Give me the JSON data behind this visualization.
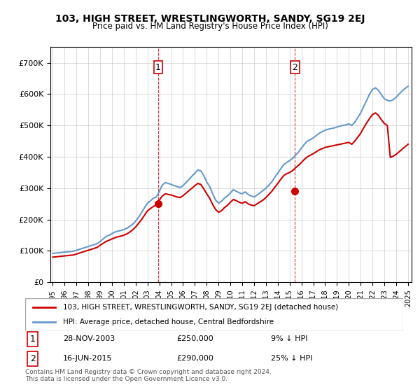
{
  "title": "103, HIGH STREET, WRESTLINGWORTH, SANDY, SG19 2EJ",
  "subtitle": "Price paid vs. HM Land Registry's House Price Index (HPI)",
  "legend_line1": "103, HIGH STREET, WRESTLINGWORTH, SANDY, SG19 2EJ (detached house)",
  "legend_line2": "HPI: Average price, detached house, Central Bedfordshire",
  "footnote": "Contains HM Land Registry data © Crown copyright and database right 2024.\nThis data is licensed under the Open Government Licence v3.0.",
  "sale1_label": "1",
  "sale1_date": "28-NOV-2003",
  "sale1_price": "£250,000",
  "sale1_hpi": "9% ↓ HPI",
  "sale1_year": 2003.9,
  "sale1_value": 250000,
  "sale2_label": "2",
  "sale2_date": "16-JUN-2015",
  "sale2_price": "£290,000",
  "sale2_hpi": "25% ↓ HPI",
  "sale2_year": 2015.45,
  "sale2_value": 290000,
  "red_color": "#cc0000",
  "blue_color": "#6699cc",
  "marker_color": "#cc0000",
  "dashed_color": "#cc3333",
  "ylim": [
    0,
    750000
  ],
  "yticks": [
    0,
    100000,
    200000,
    300000,
    400000,
    500000,
    600000,
    700000
  ],
  "hpi_data": {
    "years": [
      1995.0,
      1995.25,
      1995.5,
      1995.75,
      1996.0,
      1996.25,
      1996.5,
      1996.75,
      1997.0,
      1997.25,
      1997.5,
      1997.75,
      1998.0,
      1998.25,
      1998.5,
      1998.75,
      1999.0,
      1999.25,
      1999.5,
      1999.75,
      2000.0,
      2000.25,
      2000.5,
      2000.75,
      2001.0,
      2001.25,
      2001.5,
      2001.75,
      2002.0,
      2002.25,
      2002.5,
      2002.75,
      2003.0,
      2003.25,
      2003.5,
      2003.75,
      2004.0,
      2004.25,
      2004.5,
      2004.75,
      2005.0,
      2005.25,
      2005.5,
      2005.75,
      2006.0,
      2006.25,
      2006.5,
      2006.75,
      2007.0,
      2007.25,
      2007.5,
      2007.75,
      2008.0,
      2008.25,
      2008.5,
      2008.75,
      2009.0,
      2009.25,
      2009.5,
      2009.75,
      2010.0,
      2010.25,
      2010.5,
      2010.75,
      2011.0,
      2011.25,
      2011.5,
      2011.75,
      2012.0,
      2012.25,
      2012.5,
      2012.75,
      2013.0,
      2013.25,
      2013.5,
      2013.75,
      2014.0,
      2014.25,
      2014.5,
      2014.75,
      2015.0,
      2015.25,
      2015.5,
      2015.75,
      2016.0,
      2016.25,
      2016.5,
      2016.75,
      2017.0,
      2017.25,
      2017.5,
      2017.75,
      2018.0,
      2018.25,
      2018.5,
      2018.75,
      2019.0,
      2019.25,
      2019.5,
      2019.75,
      2020.0,
      2020.25,
      2020.5,
      2020.75,
      2021.0,
      2021.25,
      2021.5,
      2021.75,
      2022.0,
      2022.25,
      2022.5,
      2022.75,
      2023.0,
      2023.25,
      2023.5,
      2023.75,
      2024.0,
      2024.25,
      2024.5,
      2024.75,
      2025.0
    ],
    "values": [
      92000,
      93000,
      94000,
      95000,
      96000,
      97000,
      98000,
      99000,
      102000,
      105000,
      108000,
      111000,
      114000,
      117000,
      120000,
      123000,
      130000,
      138000,
      146000,
      150000,
      155000,
      160000,
      163000,
      165000,
      168000,
      172000,
      178000,
      185000,
      195000,
      208000,
      222000,
      238000,
      252000,
      260000,
      268000,
      272000,
      290000,
      310000,
      318000,
      315000,
      312000,
      308000,
      305000,
      302000,
      308000,
      318000,
      328000,
      338000,
      348000,
      358000,
      355000,
      340000,
      320000,
      305000,
      282000,
      262000,
      252000,
      258000,
      268000,
      275000,
      285000,
      295000,
      290000,
      285000,
      282000,
      288000,
      280000,
      275000,
      272000,
      278000,
      285000,
      292000,
      300000,
      310000,
      320000,
      335000,
      348000,
      362000,
      375000,
      382000,
      388000,
      395000,
      405000,
      415000,
      428000,
      440000,
      450000,
      455000,
      460000,
      468000,
      475000,
      480000,
      485000,
      488000,
      490000,
      492000,
      495000,
      498000,
      500000,
      502000,
      505000,
      500000,
      510000,
      525000,
      540000,
      560000,
      580000,
      600000,
      615000,
      620000,
      612000,
      598000,
      585000,
      580000,
      578000,
      582000,
      590000,
      600000,
      610000,
      618000,
      625000
    ]
  },
  "price_data": {
    "years": [
      1995.0,
      1995.25,
      1995.5,
      1995.75,
      1996.0,
      1996.25,
      1996.5,
      1996.75,
      1997.0,
      1997.25,
      1997.5,
      1997.75,
      1998.0,
      1998.25,
      1998.5,
      1998.75,
      1999.0,
      1999.25,
      1999.5,
      1999.75,
      2000.0,
      2000.25,
      2000.5,
      2000.75,
      2001.0,
      2001.25,
      2001.5,
      2001.75,
      2002.0,
      2002.25,
      2002.5,
      2002.75,
      2003.0,
      2003.25,
      2003.5,
      2003.75,
      2004.0,
      2004.25,
      2004.5,
      2004.75,
      2005.0,
      2005.25,
      2005.5,
      2005.75,
      2006.0,
      2006.25,
      2006.5,
      2006.75,
      2007.0,
      2007.25,
      2007.5,
      2007.75,
      2008.0,
      2008.25,
      2008.5,
      2008.75,
      2009.0,
      2009.25,
      2009.5,
      2009.75,
      2010.0,
      2010.25,
      2010.5,
      2010.75,
      2011.0,
      2011.25,
      2011.5,
      2011.75,
      2012.0,
      2012.25,
      2012.5,
      2012.75,
      2013.0,
      2013.25,
      2013.5,
      2013.75,
      2014.0,
      2014.25,
      2014.5,
      2014.75,
      2015.0,
      2015.25,
      2015.5,
      2015.75,
      2016.0,
      2016.25,
      2016.5,
      2016.75,
      2017.0,
      2017.25,
      2017.5,
      2017.75,
      2018.0,
      2018.25,
      2018.5,
      2018.75,
      2019.0,
      2019.25,
      2019.5,
      2019.75,
      2020.0,
      2020.25,
      2020.5,
      2020.75,
      2021.0,
      2021.25,
      2021.5,
      2021.75,
      2022.0,
      2022.25,
      2022.5,
      2022.75,
      2023.0,
      2023.25,
      2023.5,
      2023.75,
      2024.0,
      2024.25,
      2024.5,
      2024.75,
      2025.0
    ],
    "values": [
      80000,
      81000,
      82000,
      83000,
      84000,
      85000,
      86000,
      87000,
      90000,
      93000,
      96000,
      99000,
      102000,
      105000,
      108000,
      111000,
      118000,
      124000,
      130000,
      134000,
      138000,
      142000,
      145000,
      147000,
      150000,
      154000,
      160000,
      167000,
      176000,
      188000,
      200000,
      214000,
      228000,
      235000,
      242000,
      246000,
      262000,
      275000,
      282000,
      280000,
      278000,
      275000,
      272000,
      270000,
      276000,
      284000,
      292000,
      300000,
      308000,
      315000,
      312000,
      298000,
      282000,
      268000,
      248000,
      232000,
      223000,
      228000,
      238000,
      245000,
      255000,
      264000,
      260000,
      255000,
      252000,
      257000,
      250000,
      246000,
      244000,
      250000,
      256000,
      262000,
      270000,
      280000,
      290000,
      303000,
      315000,
      328000,
      340000,
      346000,
      350000,
      356000,
      365000,
      373000,
      382000,
      392000,
      400000,
      405000,
      410000,
      416000,
      422000,
      426000,
      430000,
      432000,
      434000,
      436000,
      438000,
      440000,
      442000,
      444000,
      446000,
      440000,
      450000,
      462000,
      475000,
      492000,
      508000,
      522000,
      535000,
      540000,
      532000,
      518000,
      506000,
      500000,
      398000,
      402000,
      408000,
      416000,
      424000,
      432000,
      440000
    ]
  },
  "xtick_years": [
    1995,
    1996,
    1997,
    1998,
    1999,
    2000,
    2001,
    2002,
    2003,
    2004,
    2005,
    2006,
    2007,
    2008,
    2009,
    2010,
    2011,
    2012,
    2013,
    2014,
    2015,
    2016,
    2017,
    2018,
    2019,
    2020,
    2021,
    2022,
    2023,
    2024,
    2025
  ]
}
